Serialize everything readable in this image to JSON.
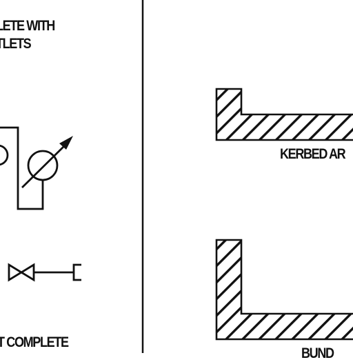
{
  "labels": {
    "top_line_1": "LETE WITH",
    "top_line_2": "TLETS",
    "bottom_left": "T COMPLETE",
    "kerbed_area": "KERBED AR",
    "bund": "BUND"
  },
  "colors": {
    "ink": "#111111",
    "background": "#ffffff"
  },
  "hatch": {
    "style": "diagonal"
  },
  "icons": [
    "circle-icon",
    "arrow-icon",
    "gate-valve-icon",
    "end-cap-icon"
  ]
}
